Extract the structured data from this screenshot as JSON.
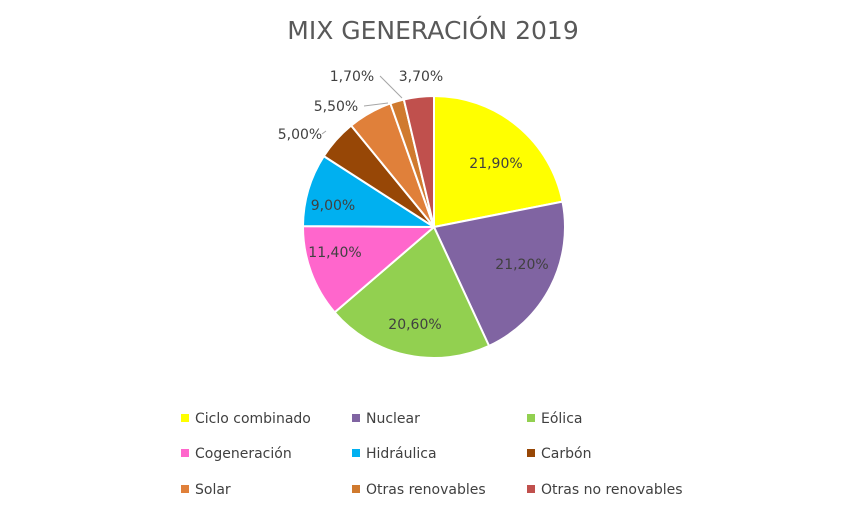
{
  "chart_data": {
    "type": "pie",
    "title": "MIX GENERACIÓN 2019",
    "legend_position": "bottom",
    "slices": [
      {
        "name": "Ciclo combinado",
        "value": 21.9,
        "label": "21,90%",
        "color": "#FFFF00"
      },
      {
        "name": "Nuclear",
        "value": 21.2,
        "label": "21,20%",
        "color": "#8064A2"
      },
      {
        "name": "Eólica",
        "value": 20.6,
        "label": "20,60%",
        "color": "#92D050"
      },
      {
        "name": "Cogeneración",
        "value": 11.4,
        "label": "11,40%",
        "color": "#FF66CC"
      },
      {
        "name": "Hidráulica",
        "value": 9.0,
        "label": "9,00%",
        "color": "#00B0F0"
      },
      {
        "name": "Carbón",
        "value": 5.0,
        "label": "5,00%",
        "color": "#974706"
      },
      {
        "name": "Solar",
        "value": 5.5,
        "label": "5,50%",
        "color": "#E0803A"
      },
      {
        "name": "Otras renovables",
        "value": 1.7,
        "label": "1,70%",
        "color": "#D07A2E"
      },
      {
        "name": "Otras no renovables",
        "value": 3.7,
        "label": "3,70%",
        "color": "#C0504D"
      }
    ]
  }
}
